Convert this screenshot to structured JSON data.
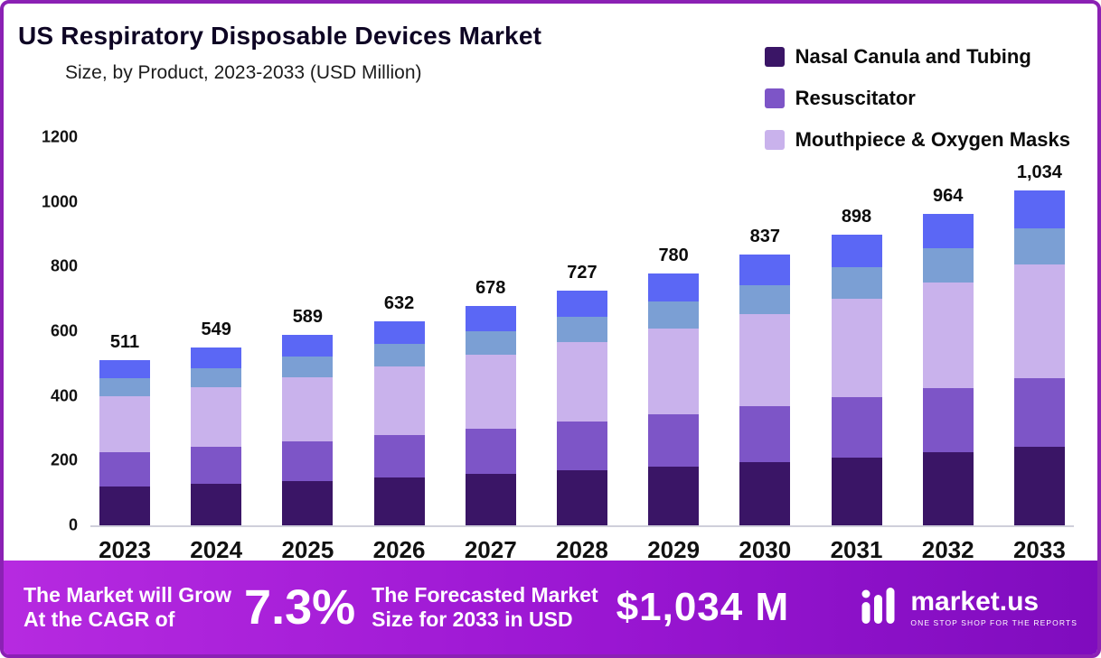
{
  "header": {
    "title": "US Respiratory Disposable Devices Market",
    "subtitle": "Size, by Product, 2023-2033 (USD Million)"
  },
  "legend": [
    {
      "label": "Nasal Canula and Tubing",
      "color": "#3a1566"
    },
    {
      "label": "Resuscitator",
      "color": "#7d55c7"
    },
    {
      "label": "Mouthpiece & Oxygen Masks",
      "color": "#c9b2ec"
    }
  ],
  "chart_data": {
    "type": "bar",
    "stacked": true,
    "title": "US Respiratory Disposable Devices Market Size, by Product, 2023-2033 (USD Million)",
    "categories": [
      "2023",
      "2024",
      "2025",
      "2026",
      "2027",
      "2028",
      "2029",
      "2030",
      "2031",
      "2032",
      "2033"
    ],
    "totals": [
      511,
      549,
      589,
      632,
      678,
      727,
      780,
      837,
      898,
      964,
      1034
    ],
    "series": [
      {
        "name": "Nasal Canula and Tubing",
        "color": "#3a1566",
        "values": [
          120,
          128,
          137,
          147,
          158,
          170,
          182,
          196,
          210,
          226,
          242
        ]
      },
      {
        "name": "Resuscitator",
        "color": "#7d55c7",
        "values": [
          105,
          114,
          122,
          131,
          140,
          150,
          161,
          173,
          186,
          199,
          214
        ]
      },
      {
        "name": "Mouthpiece & Oxygen Masks",
        "color": "#c9b2ec",
        "values": [
          175,
          186,
          200,
          214,
          230,
          246,
          264,
          284,
          304,
          327,
          350
        ]
      },
      {
        "name": "unlabeled-segment-steel-blue",
        "color": "#7b9fd4",
        "values": [
          55,
          59,
          63,
          68,
          73,
          78,
          84,
          90,
          97,
          104,
          111
        ]
      },
      {
        "name": "unlabeled-segment-blue",
        "color": "#5b67f5",
        "values": [
          56,
          62,
          67,
          72,
          77,
          83,
          89,
          94,
          101,
          108,
          117
        ]
      }
    ],
    "xlabel": "",
    "ylabel": "",
    "ylim": [
      0,
      1200
    ],
    "yticks": [
      0,
      200,
      400,
      600,
      800,
      1000,
      1200
    ],
    "grid": false,
    "legend_position": "top-right"
  },
  "banner": {
    "cagr_label_line1": "The Market will Grow",
    "cagr_label_line2": "At the CAGR of",
    "cagr_value": "7.3%",
    "forecast_label_line1": "The Forecasted Market",
    "forecast_label_line2": "Size for 2033 in USD",
    "forecast_value": "$1,034 M",
    "logo_text": "market.us",
    "logo_tagline": "ONE STOP SHOP FOR THE REPORTS"
  }
}
